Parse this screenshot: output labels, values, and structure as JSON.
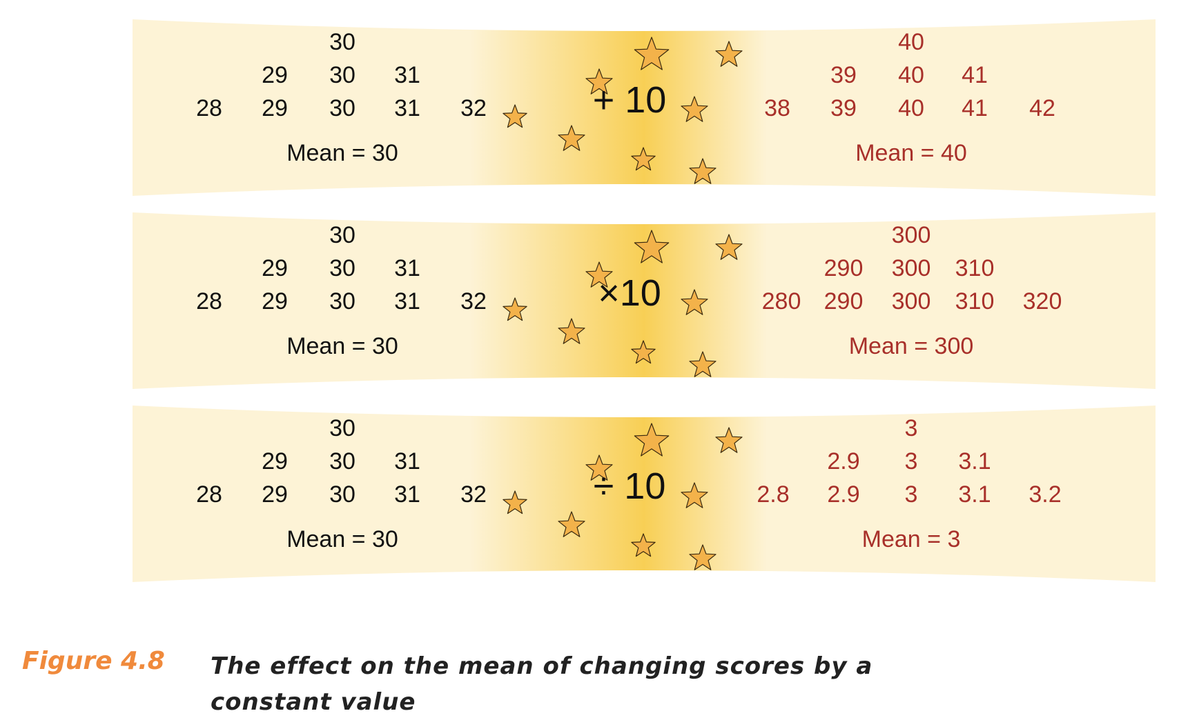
{
  "colors": {
    "original": "#111111",
    "result": "#a8302a",
    "band_light": "#fdf3d6",
    "band_center": "#f8cf55",
    "star_fill": "#f3b24a",
    "caption_label": "#f08a3c"
  },
  "panels": [
    {
      "original": {
        "row1": [
          "30"
        ],
        "row2": [
          "29",
          "30",
          "31"
        ],
        "row3": [
          "28",
          "29",
          "30",
          "31",
          "32"
        ],
        "mean": "Mean = 30"
      },
      "operation": "+ 10",
      "result": {
        "row1": [
          "40"
        ],
        "row2": [
          "39",
          "40",
          "41"
        ],
        "row3": [
          "38",
          "39",
          "40",
          "41",
          "42"
        ],
        "mean": "Mean = 40"
      }
    },
    {
      "original": {
        "row1": [
          "30"
        ],
        "row2": [
          "29",
          "30",
          "31"
        ],
        "row3": [
          "28",
          "29",
          "30",
          "31",
          "32"
        ],
        "mean": "Mean = 30"
      },
      "operation": "×10",
      "result": {
        "row1": [
          "300"
        ],
        "row2": [
          "290",
          "300",
          "310"
        ],
        "row3": [
          "280",
          "290",
          "300",
          "310",
          "320"
        ],
        "mean": "Mean = 300"
      }
    },
    {
      "original": {
        "row1": [
          "30"
        ],
        "row2": [
          "29",
          "30",
          "31"
        ],
        "row3": [
          "28",
          "29",
          "30",
          "31",
          "32"
        ],
        "mean": "Mean = 30"
      },
      "operation": "÷ 10",
      "result": {
        "row1": [
          "3"
        ],
        "row2": [
          "2.9",
          "3",
          "3.1"
        ],
        "row3": [
          "2.8",
          "2.9",
          "3",
          "3.1",
          "3.2"
        ],
        "mean": "Mean = 3"
      }
    }
  ],
  "caption": {
    "label": "Figure 4.8",
    "text": "The effect on the mean of changing scores by a constant value"
  },
  "icons": {
    "decoration": "star-icon"
  }
}
